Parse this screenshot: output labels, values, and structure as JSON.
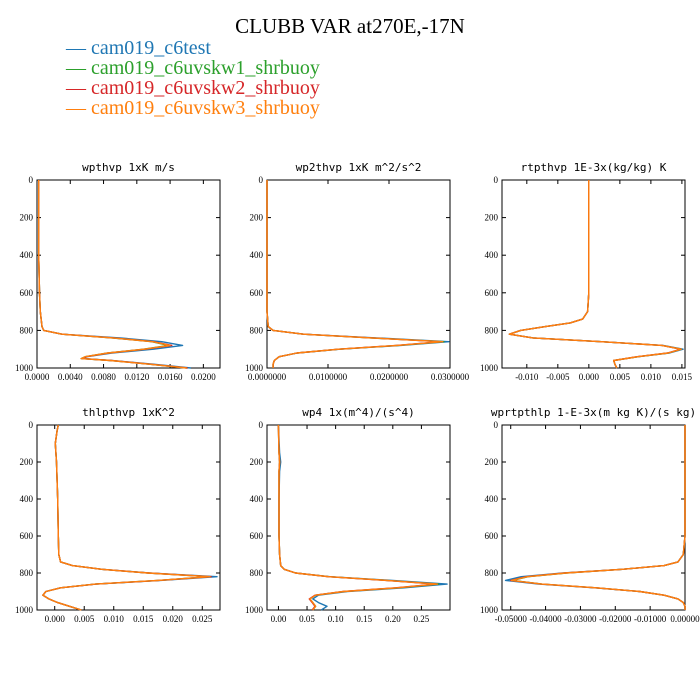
{
  "title": "CLUBB VAR at270E,-17N",
  "legend": [
    {
      "label": "cam019_c6test",
      "color": "#1f77b4"
    },
    {
      "label": "cam019_c6uvskw1_shrbuoy",
      "color": "#2ca02c"
    },
    {
      "label": "cam019_c6uvskw2_shrbuoy",
      "color": "#d62728"
    },
    {
      "label": "cam019_c6uvskw3_shrbuoy",
      "color": "#ff7f0e"
    }
  ],
  "chart_data": [
    {
      "type": "line",
      "title": "wpthvp  1xK m/s",
      "xlim": [
        0,
        0.022
      ],
      "xticks": [
        "0.0000",
        "0.0040",
        "0.0080",
        "0.0120",
        "0.0160",
        "0.0200"
      ],
      "xtick_values": [
        0,
        0.004,
        0.008,
        0.012,
        0.016,
        0.02
      ],
      "ylim": [
        1000,
        0
      ],
      "yticks": [
        "0",
        "200",
        "400",
        "600",
        "800",
        "1000"
      ],
      "ytick_values": [
        0,
        200,
        400,
        600,
        800,
        1000
      ],
      "y": [
        0,
        200,
        400,
        600,
        700,
        780,
        800,
        820,
        840,
        860,
        880,
        900,
        920,
        940,
        950,
        960,
        980,
        1000
      ],
      "series": [
        {
          "name": "cam019_c6test",
          "values": [
            0.0002,
            0.0002,
            0.0002,
            0.0003,
            0.0004,
            0.0006,
            0.0008,
            0.003,
            0.01,
            0.015,
            0.0175,
            0.014,
            0.009,
            0.006,
            0.0055,
            0.009,
            0.014,
            0.0185
          ]
        },
        {
          "name": "cam019_c6uvskw1_shrbuoy",
          "values": [
            0.0002,
            0.0002,
            0.0002,
            0.0003,
            0.0004,
            0.0006,
            0.0008,
            0.003,
            0.009,
            0.0138,
            0.0158,
            0.0128,
            0.0085,
            0.0058,
            0.0053,
            0.0088,
            0.0135,
            0.018
          ]
        },
        {
          "name": "cam019_c6uvskw2_shrbuoy",
          "values": [
            0.0002,
            0.0002,
            0.0002,
            0.0003,
            0.0004,
            0.0006,
            0.0008,
            0.003,
            0.0092,
            0.014,
            0.0162,
            0.013,
            0.0086,
            0.0059,
            0.0054,
            0.0089,
            0.0136,
            0.0181
          ]
        },
        {
          "name": "cam019_c6uvskw3_shrbuoy",
          "values": [
            0.0002,
            0.0002,
            0.0002,
            0.0003,
            0.0004,
            0.0006,
            0.0008,
            0.003,
            0.0091,
            0.0139,
            0.016,
            0.0129,
            0.0085,
            0.0058,
            0.0053,
            0.0088,
            0.0135,
            0.018
          ]
        }
      ]
    },
    {
      "type": "line",
      "title": "wp2thvp  1xK m^2/s^2",
      "xlim": [
        0,
        0.03
      ],
      "xticks": [
        "0.0000000",
        "0.0100000",
        "0.0200000",
        "0.0300000"
      ],
      "xtick_values": [
        0,
        0.01,
        0.02,
        0.03
      ],
      "ylim": [
        1000,
        0
      ],
      "yticks": [
        "0",
        "200",
        "400",
        "600",
        "800",
        "1000"
      ],
      "ytick_values": [
        0,
        200,
        400,
        600,
        800,
        1000
      ],
      "y": [
        0,
        200,
        400,
        600,
        700,
        780,
        800,
        820,
        840,
        860,
        880,
        900,
        920,
        940,
        960,
        980,
        1000
      ],
      "series": [
        {
          "name": "cam019_c6test",
          "values": [
            0,
            0,
            0,
            0,
            0,
            0.0002,
            0.001,
            0.006,
            0.018,
            0.0298,
            0.022,
            0.012,
            0.005,
            0.002,
            0.0012,
            0.001,
            0.001
          ]
        },
        {
          "name": "cam019_c6uvskw1_shrbuoy",
          "values": [
            0,
            0,
            0,
            0,
            0,
            0.0002,
            0.001,
            0.006,
            0.017,
            0.029,
            0.0215,
            0.0118,
            0.0049,
            0.002,
            0.0012,
            0.001,
            0.001
          ]
        },
        {
          "name": "cam019_c6uvskw2_shrbuoy",
          "values": [
            0,
            0,
            0,
            0,
            0,
            0.0002,
            0.001,
            0.006,
            0.0172,
            0.0285,
            0.0212,
            0.0117,
            0.0049,
            0.002,
            0.0012,
            0.001,
            0.001
          ]
        },
        {
          "name": "cam019_c6uvskw3_shrbuoy",
          "values": [
            0,
            0,
            0,
            0,
            0,
            0.0002,
            0.001,
            0.006,
            0.0171,
            0.0288,
            0.0214,
            0.0118,
            0.0049,
            0.002,
            0.0012,
            0.001,
            0.001
          ]
        }
      ]
    },
    {
      "type": "line",
      "title": "rtpthvp  1E-3x(kg/kg) K",
      "xlim": [
        -0.014,
        0.0155
      ],
      "xticks": [
        "-0.010",
        "-0.005",
        "0.000",
        "0.005",
        "0.010",
        "0.015"
      ],
      "xtick_values": [
        -0.01,
        -0.005,
        0,
        0.005,
        0.01,
        0.015
      ],
      "ylim": [
        1000,
        0
      ],
      "yticks": [
        "0",
        "200",
        "400",
        "600",
        "800",
        "1000"
      ],
      "ytick_values": [
        0,
        200,
        400,
        600,
        800,
        1000
      ],
      "y": [
        0,
        200,
        400,
        600,
        700,
        740,
        760,
        780,
        800,
        820,
        840,
        860,
        880,
        900,
        920,
        940,
        960,
        980,
        1000
      ],
      "series": [
        {
          "name": "cam019_c6test",
          "values": [
            0.0,
            0.0,
            0.0,
            0.0,
            -0.0002,
            -0.001,
            -0.003,
            -0.007,
            -0.011,
            -0.0128,
            -0.009,
            0.002,
            0.012,
            0.0152,
            0.013,
            0.008,
            0.004,
            0.0042,
            0.0045
          ]
        },
        {
          "name": "cam019_c6uvskw1_shrbuoy",
          "values": [
            0.0,
            0.0,
            0.0,
            0.0,
            -0.0002,
            -0.001,
            -0.003,
            -0.007,
            -0.011,
            -0.0128,
            -0.009,
            0.002,
            0.0118,
            0.0149,
            0.0128,
            0.0079,
            0.004,
            0.0042,
            0.0045
          ]
        },
        {
          "name": "cam019_c6uvskw2_shrbuoy",
          "values": [
            0.0,
            0.0,
            0.0,
            0.0,
            -0.0002,
            -0.001,
            -0.003,
            -0.007,
            -0.011,
            -0.0128,
            -0.009,
            0.002,
            0.0118,
            0.0148,
            0.0127,
            0.0078,
            0.004,
            0.0042,
            0.0045
          ]
        },
        {
          "name": "cam019_c6uvskw3_shrbuoy",
          "values": [
            0.0,
            0.0,
            0.0,
            0.0,
            -0.0002,
            -0.001,
            -0.003,
            -0.007,
            -0.011,
            -0.0128,
            -0.009,
            0.002,
            0.0118,
            0.0149,
            0.0128,
            0.0079,
            0.004,
            0.0042,
            0.0045
          ]
        }
      ]
    },
    {
      "type": "line",
      "title": "thlpthvp  1xK^2",
      "xlim": [
        -0.003,
        0.028
      ],
      "xticks": [
        "0.000",
        "0.005",
        "0.010",
        "0.015",
        "0.020",
        "0.025"
      ],
      "xtick_values": [
        0,
        0.005,
        0.01,
        0.015,
        0.02,
        0.025
      ],
      "ylim": [
        1000,
        0
      ],
      "yticks": [
        "0",
        "200",
        "400",
        "600",
        "800",
        "1000"
      ],
      "ytick_values": [
        0,
        200,
        400,
        600,
        800,
        1000
      ],
      "y": [
        0,
        30,
        100,
        200,
        400,
        600,
        700,
        740,
        760,
        780,
        800,
        820,
        840,
        860,
        880,
        900,
        920,
        940,
        960,
        980,
        1000
      ],
      "series": [
        {
          "name": "cam019_c6test",
          "values": [
            0.0006,
            0.0004,
            0.0001,
            0.0003,
            0.0005,
            0.0006,
            0.0007,
            0.001,
            0.003,
            0.008,
            0.016,
            0.0275,
            0.018,
            0.007,
            0.001,
            -0.0015,
            -0.002,
            -0.001,
            0.0005,
            0.0025,
            0.0045
          ]
        },
        {
          "name": "cam019_c6uvskw1_shrbuoy",
          "values": [
            0.0006,
            0.0004,
            0.0001,
            0.0003,
            0.0005,
            0.0006,
            0.0007,
            0.001,
            0.003,
            0.008,
            0.0158,
            0.0262,
            0.0175,
            0.0069,
            0.001,
            -0.0015,
            -0.002,
            -0.001,
            0.0005,
            0.0025,
            0.0045
          ]
        },
        {
          "name": "cam019_c6uvskw2_shrbuoy",
          "values": [
            0.0006,
            0.0004,
            0.0001,
            0.0003,
            0.0005,
            0.0006,
            0.0007,
            0.001,
            0.003,
            0.008,
            0.0159,
            0.0265,
            0.0176,
            0.007,
            0.001,
            -0.0015,
            -0.002,
            -0.001,
            0.0005,
            0.0025,
            0.0045
          ]
        },
        {
          "name": "cam019_c6uvskw3_shrbuoy",
          "values": [
            0.0006,
            0.0004,
            0.0001,
            0.0003,
            0.0005,
            0.0006,
            0.0007,
            0.001,
            0.003,
            0.008,
            0.0158,
            0.0263,
            0.0175,
            0.0069,
            0.001,
            -0.0015,
            -0.002,
            -0.001,
            0.0005,
            0.0025,
            0.0045
          ]
        }
      ]
    },
    {
      "type": "line",
      "title": "wp4  1x(m^4)/(s^4)",
      "xlim": [
        -0.02,
        0.3
      ],
      "xticks": [
        "0.00",
        "0.05",
        "0.10",
        "0.15",
        "0.20",
        "0.25"
      ],
      "xtick_values": [
        0,
        0.05,
        0.1,
        0.15,
        0.2,
        0.25
      ],
      "ylim": [
        1000,
        0
      ],
      "yticks": [
        "0",
        "200",
        "400",
        "600",
        "800",
        "1000"
      ],
      "ytick_values": [
        0,
        200,
        400,
        600,
        800,
        1000
      ],
      "y": [
        0,
        150,
        200,
        250,
        400,
        600,
        700,
        760,
        780,
        800,
        820,
        840,
        860,
        880,
        900,
        920,
        940,
        960,
        980,
        1000
      ],
      "series": [
        {
          "name": "cam019_c6test",
          "values": [
            0.0,
            0.002,
            0.004,
            0.002,
            0.001,
            0.001,
            0.002,
            0.004,
            0.01,
            0.03,
            0.09,
            0.2,
            0.295,
            0.22,
            0.12,
            0.07,
            0.06,
            0.07,
            0.085,
            0.075
          ]
        },
        {
          "name": "cam019_c6uvskw1_shrbuoy",
          "values": [
            0.0,
            0.001,
            0.002,
            0.001,
            0.001,
            0.001,
            0.002,
            0.004,
            0.01,
            0.03,
            0.088,
            0.19,
            0.28,
            0.21,
            0.115,
            0.065,
            0.055,
            0.06,
            0.065,
            0.06
          ]
        },
        {
          "name": "cam019_c6uvskw2_shrbuoy",
          "values": [
            0.0,
            0.001,
            0.002,
            0.001,
            0.001,
            0.001,
            0.002,
            0.004,
            0.01,
            0.03,
            0.087,
            0.188,
            0.275,
            0.205,
            0.113,
            0.064,
            0.054,
            0.059,
            0.064,
            0.059
          ]
        },
        {
          "name": "cam019_c6uvskw3_shrbuoy",
          "values": [
            0.0,
            0.001,
            0.002,
            0.001,
            0.001,
            0.001,
            0.002,
            0.004,
            0.01,
            0.03,
            0.088,
            0.19,
            0.278,
            0.208,
            0.114,
            0.065,
            0.055,
            0.06,
            0.065,
            0.06
          ]
        }
      ]
    },
    {
      "type": "line",
      "title": "wprtpthlp  1-E-3x(m kg K)/(s kg)",
      "xlim": [
        -0.0525,
        0.0
      ],
      "xticks": [
        "-0.05000",
        "-0.04000",
        "-0.03000",
        "-0.02000",
        "-0.01000",
        "0.00000"
      ],
      "xtick_values": [
        -0.05,
        -0.04,
        -0.03,
        -0.02,
        -0.01,
        0
      ],
      "ylim": [
        1000,
        0
      ],
      "yticks": [
        "0",
        "200",
        "400",
        "600",
        "800",
        "1000"
      ],
      "ytick_values": [
        0,
        200,
        400,
        600,
        800,
        1000
      ],
      "y": [
        0,
        200,
        400,
        600,
        700,
        740,
        760,
        780,
        800,
        820,
        840,
        860,
        880,
        900,
        920,
        940,
        960,
        980,
        1000
      ],
      "series": [
        {
          "name": "cam019_c6test",
          "values": [
            0.0,
            0.0,
            0.0,
            0.0,
            -0.0005,
            -0.002,
            -0.006,
            -0.018,
            -0.035,
            -0.047,
            -0.0515,
            -0.042,
            -0.026,
            -0.013,
            -0.006,
            -0.002,
            -0.0005,
            0.0,
            0.0
          ]
        },
        {
          "name": "cam019_c6uvskw1_shrbuoy",
          "values": [
            0.0,
            0.0,
            0.0,
            0.0,
            -0.0005,
            -0.002,
            -0.006,
            -0.018,
            -0.034,
            -0.045,
            -0.0495,
            -0.041,
            -0.0255,
            -0.013,
            -0.006,
            -0.002,
            -0.0005,
            0.0,
            0.0
          ]
        },
        {
          "name": "cam019_c6uvskw2_shrbuoy",
          "values": [
            0.0,
            0.0,
            0.0,
            0.0,
            -0.0005,
            -0.002,
            -0.006,
            -0.018,
            -0.0345,
            -0.0455,
            -0.05,
            -0.0412,
            -0.0256,
            -0.013,
            -0.006,
            -0.002,
            -0.0005,
            0.0,
            0.0
          ]
        },
        {
          "name": "cam019_c6uvskw3_shrbuoy",
          "values": [
            0.0,
            0.0,
            0.0,
            0.0,
            -0.0005,
            -0.002,
            -0.006,
            -0.018,
            -0.0342,
            -0.0452,
            -0.0498,
            -0.0411,
            -0.0255,
            -0.013,
            -0.006,
            -0.002,
            -0.0005,
            0.0,
            0.0
          ]
        }
      ]
    }
  ]
}
